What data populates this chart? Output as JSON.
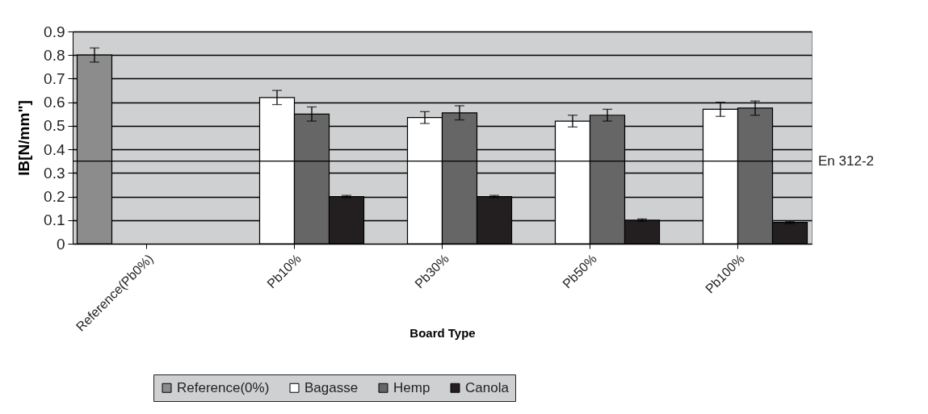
{
  "chart_data": {
    "type": "bar",
    "xlabel": "Board Type",
    "ylabel": "IB[N/mm\"]",
    "categories": [
      "Reference(Pb0%)",
      "Pb10%",
      "Pb30%",
      "Pb50%",
      "Pb100%"
    ],
    "series": [
      {
        "name": "Reference(0%)",
        "color": "#8c8c8c",
        "values": [
          0.8,
          null,
          null,
          null,
          null
        ],
        "errors": [
          0.03,
          null,
          null,
          null,
          null
        ]
      },
      {
        "name": "Bagasse",
        "color": "#ffffff",
        "values": [
          null,
          0.62,
          0.535,
          0.52,
          0.57
        ],
        "errors": [
          null,
          0.03,
          0.025,
          0.025,
          0.03
        ]
      },
      {
        "name": "Hemp",
        "color": "#666666",
        "values": [
          null,
          0.55,
          0.555,
          0.545,
          0.575
        ],
        "errors": [
          null,
          0.03,
          0.03,
          0.025,
          0.03
        ]
      },
      {
        "name": "Canola",
        "color": "#231f20",
        "values": [
          null,
          0.2,
          0.2,
          0.1,
          0.09
        ],
        "errors": [
          null,
          0.005,
          0.005,
          0.005,
          0.005
        ]
      }
    ],
    "ylim": [
      0,
      0.9
    ],
    "yticks": [
      0,
      0.1,
      0.2,
      0.3,
      0.4,
      0.5,
      0.6,
      0.7,
      0.8,
      0.9
    ],
    "ref_lines": [
      {
        "axis": "y",
        "value": 0.35,
        "label": "En 312-2"
      }
    ],
    "grid": "y",
    "legend": "bottom"
  }
}
